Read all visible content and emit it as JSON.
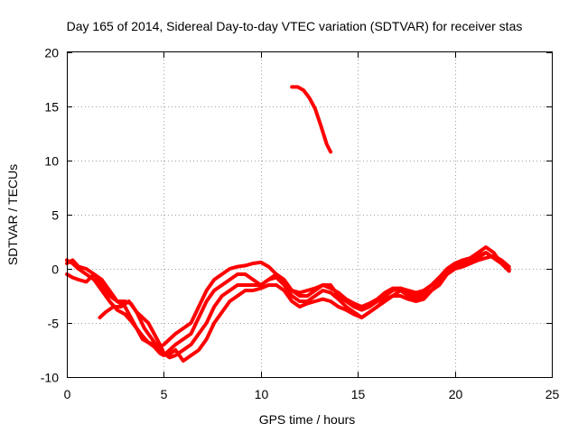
{
  "chart_data": {
    "type": "line",
    "title": "Day 165 of 2014, Sidereal Day-to-day VTEC variation (SDTVAR) for receiver stas",
    "xlabel": "GPS time / hours",
    "ylabel": "SDTVAR / TECUs",
    "xlim": [
      0,
      25
    ],
    "ylim": [
      -10,
      20
    ],
    "xticks": [
      "0",
      "5",
      "10",
      "15",
      "20",
      "25"
    ],
    "yticks": [
      "-10",
      "-5",
      "0",
      "5",
      "10",
      "15",
      "20"
    ],
    "xtick_values": [
      0,
      5,
      10,
      15,
      20,
      25
    ],
    "ytick_values": [
      -10,
      -5,
      0,
      5,
      10,
      15,
      20
    ],
    "grid": true,
    "color": "#ff0000",
    "series": [
      {
        "name": "track-1",
        "x": [
          0.0,
          0.3,
          0.6,
          1.0,
          1.4,
          1.8,
          2.2,
          2.6,
          3.0,
          3.3,
          3.6,
          3.9,
          4.2,
          4.5,
          4.8,
          5.0,
          5.3,
          5.6,
          6.0,
          6.4,
          6.8,
          7.2,
          7.6,
          8.0,
          8.4,
          8.8,
          9.2,
          9.6,
          10.0,
          10.4,
          10.8,
          11.2,
          11.6,
          12.0,
          12.4,
          12.8,
          13.2,
          13.6,
          14.0,
          14.4,
          14.8,
          15.2,
          15.6,
          16.0,
          16.4,
          16.8,
          17.2,
          17.6,
          18.0,
          18.4,
          18.8,
          19.2,
          19.6,
          20.0,
          20.4,
          20.8,
          21.2,
          21.6,
          22.0,
          22.4,
          22.8
        ],
        "values": [
          0.5,
          0.8,
          0.2,
          0.0,
          -0.5,
          -1.5,
          -2.5,
          -3.0,
          -3.5,
          -4.5,
          -5.5,
          -6.5,
          -6.8,
          -7.2,
          -7.8,
          -8.0,
          -7.5,
          -7.0,
          -6.5,
          -6.0,
          -4.5,
          -3.0,
          -2.0,
          -1.5,
          -1.0,
          -0.5,
          -0.5,
          -1.0,
          -1.5,
          -1.0,
          -0.5,
          -1.0,
          -2.0,
          -2.5,
          -2.5,
          -2.0,
          -1.5,
          -1.5,
          -2.5,
          -3.0,
          -3.5,
          -3.8,
          -3.5,
          -3.0,
          -2.5,
          -2.0,
          -1.8,
          -2.0,
          -2.2,
          -2.0,
          -1.5,
          -0.8,
          -0.2,
          0.3,
          0.5,
          0.5,
          0.8,
          1.0,
          1.2,
          0.8,
          0.2
        ]
      },
      {
        "name": "track-2",
        "x": [
          0.0,
          0.3,
          0.6,
          1.0,
          1.4,
          1.8,
          2.2,
          2.6,
          3.0,
          3.3,
          3.6,
          3.9,
          4.2,
          4.5,
          4.8,
          5.0,
          5.3,
          5.6,
          6.0,
          6.4,
          6.8,
          7.2,
          7.6,
          8.0,
          8.4,
          8.8,
          9.2,
          9.6,
          10.0,
          10.4,
          10.8,
          11.2,
          11.6,
          12.0,
          12.4,
          12.8,
          13.2,
          13.6,
          14.0,
          14.4,
          14.8,
          15.2,
          15.6,
          16.0,
          16.4,
          16.8,
          17.2,
          17.6,
          18.0,
          18.4,
          18.8,
          19.2,
          19.6,
          20.0,
          20.4,
          20.8,
          21.2,
          21.6,
          22.0,
          22.4,
          22.8
        ],
        "values": [
          -0.5,
          -0.8,
          -1.0,
          -1.2,
          -0.5,
          -1.0,
          -2.0,
          -3.0,
          -3.0,
          -3.2,
          -4.0,
          -4.5,
          -5.0,
          -6.0,
          -7.0,
          -7.8,
          -8.2,
          -8.0,
          -7.5,
          -7.0,
          -6.0,
          -5.0,
          -3.5,
          -2.5,
          -2.0,
          -1.5,
          -1.5,
          -1.5,
          -1.5,
          -1.0,
          -0.8,
          -1.5,
          -2.5,
          -3.0,
          -3.0,
          -2.5,
          -2.0,
          -2.2,
          -2.8,
          -3.5,
          -4.0,
          -4.5,
          -4.0,
          -3.5,
          -3.0,
          -2.5,
          -2.0,
          -2.5,
          -2.8,
          -2.5,
          -2.0,
          -1.2,
          -0.5,
          0.0,
          0.2,
          0.5,
          1.0,
          1.5,
          1.0,
          0.5,
          0.0
        ]
      },
      {
        "name": "track-3",
        "x": [
          0.0,
          0.3,
          0.6,
          1.0,
          1.4,
          1.8,
          2.2,
          2.6,
          3.0,
          3.3,
          3.6,
          3.9,
          4.2,
          4.5,
          4.8,
          5.0,
          5.3,
          5.6,
          6.0,
          6.4,
          6.8,
          7.2,
          7.6,
          8.0,
          8.4,
          8.8,
          9.2,
          9.6,
          10.0,
          10.4,
          10.8,
          11.2,
          11.6,
          12.0,
          12.4,
          12.8,
          13.2,
          13.6,
          14.0,
          14.4,
          14.8,
          15.2,
          15.6,
          16.0,
          16.4,
          16.8,
          17.2,
          17.6,
          18.0,
          18.4,
          18.8,
          19.2,
          19.6,
          20.0,
          20.4,
          20.8,
          21.2,
          21.6,
          22.0,
          22.4,
          22.8
        ],
        "values": [
          0.8,
          0.5,
          0.0,
          -0.5,
          -1.0,
          -2.0,
          -3.0,
          -3.8,
          -4.2,
          -4.8,
          -5.5,
          -6.2,
          -6.8,
          -7.0,
          -7.2,
          -7.0,
          -6.5,
          -6.0,
          -5.5,
          -5.0,
          -3.5,
          -2.0,
          -1.0,
          -0.5,
          0.0,
          0.2,
          0.3,
          0.5,
          0.6,
          0.2,
          -0.5,
          -1.5,
          -2.0,
          -2.2,
          -2.0,
          -1.8,
          -1.5,
          -1.8,
          -2.2,
          -2.8,
          -3.2,
          -3.5,
          -3.2,
          -2.8,
          -2.2,
          -1.8,
          -1.8,
          -2.2,
          -2.5,
          -2.2,
          -1.5,
          -0.8,
          0.0,
          0.5,
          0.8,
          1.0,
          1.5,
          2.0,
          1.5,
          0.5,
          -0.2
        ]
      },
      {
        "name": "track-4",
        "x": [
          1.7,
          2.0,
          2.4,
          2.8,
          3.2,
          3.6,
          4.0,
          4.4,
          4.8,
          5.2,
          5.6,
          6.0,
          6.4,
          6.8,
          7.2,
          7.6,
          8.0,
          8.4,
          8.8,
          9.2,
          9.6,
          10.0,
          10.4,
          10.8,
          11.2,
          11.6,
          12.0,
          12.4,
          12.8,
          13.2,
          13.6,
          14.0,
          14.4,
          14.8,
          15.2,
          15.6,
          16.0,
          16.4,
          16.8,
          17.2,
          17.6,
          18.0,
          18.4,
          18.8,
          19.2,
          19.6,
          20.0,
          20.4,
          20.8,
          21.2,
          21.6,
          22.0,
          22.4,
          22.8
        ],
        "values": [
          -4.5,
          -4.0,
          -3.5,
          -3.5,
          -3.0,
          -4.0,
          -5.5,
          -6.5,
          -7.5,
          -8.0,
          -7.5,
          -8.5,
          -8.0,
          -7.5,
          -6.5,
          -5.0,
          -4.0,
          -3.0,
          -2.5,
          -2.0,
          -2.0,
          -1.8,
          -1.5,
          -1.5,
          -2.0,
          -3.0,
          -3.5,
          -3.2,
          -3.0,
          -2.8,
          -3.0,
          -3.5,
          -3.8,
          -4.2,
          -4.5,
          -4.0,
          -3.5,
          -2.8,
          -2.5,
          -2.5,
          -2.8,
          -3.0,
          -2.8,
          -2.0,
          -1.5,
          -0.5,
          0.0,
          0.5,
          0.8,
          1.2,
          1.5,
          1.0,
          0.5,
          -0.2
        ]
      },
      {
        "name": "isolated-segment",
        "x": [
          11.6,
          11.9,
          12.2,
          12.5,
          12.8,
          13.1,
          13.4,
          13.6
        ],
        "values": [
          16.8,
          16.8,
          16.5,
          15.8,
          14.8,
          13.2,
          11.5,
          10.8
        ]
      }
    ]
  }
}
